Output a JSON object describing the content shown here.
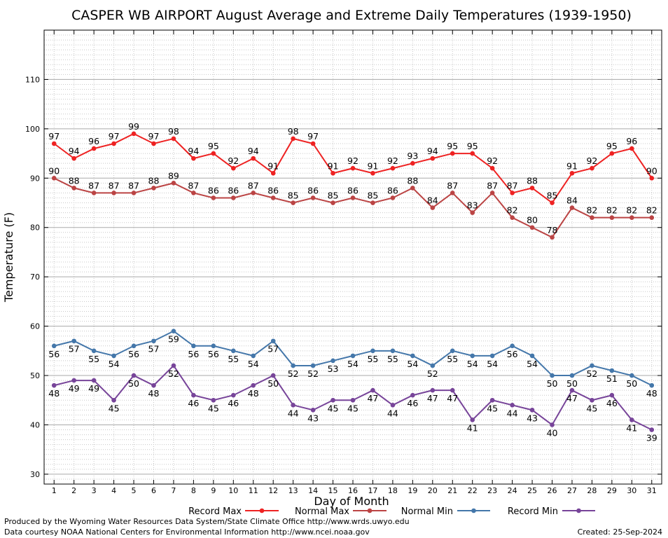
{
  "chart_data": {
    "type": "line",
    "title": "CASPER WB AIRPORT August Average and Extreme Daily Temperatures (1939-1950)",
    "xlabel": "Day of Month",
    "ylabel": "Temperature (F)",
    "ylim": [
      28,
      120
    ],
    "y_ticks": [
      30,
      40,
      50,
      60,
      70,
      80,
      90,
      100,
      110
    ],
    "x": [
      1,
      2,
      3,
      4,
      5,
      6,
      7,
      8,
      9,
      10,
      11,
      12,
      13,
      14,
      15,
      16,
      17,
      18,
      19,
      20,
      21,
      22,
      23,
      24,
      25,
      26,
      27,
      28,
      29,
      30,
      31
    ],
    "grid": true,
    "legend_position": "bottom",
    "series": [
      {
        "name": "Record Max",
        "color": "#ee2222",
        "values": [
          97,
          94,
          96,
          97,
          99,
          97,
          98,
          94,
          95,
          92,
          94,
          91,
          98,
          97,
          91,
          92,
          91,
          92,
          93,
          94,
          95,
          95,
          92,
          87,
          88,
          85,
          91,
          92,
          95,
          96,
          90
        ]
      },
      {
        "name": "Normal Max",
        "color": "#bb4444",
        "values": [
          90,
          88,
          87,
          87,
          87,
          88,
          89,
          87,
          86,
          86,
          87,
          86,
          85,
          86,
          85,
          86,
          85,
          86,
          88,
          84,
          87,
          83,
          87,
          82,
          80,
          78,
          84,
          82,
          82,
          82,
          82
        ]
      },
      {
        "name": "Normal Min",
        "color": "#4477aa",
        "values": [
          56,
          57,
          55,
          54,
          56,
          57,
          59,
          56,
          56,
          55,
          54,
          57,
          52,
          52,
          53,
          54,
          55,
          55,
          54,
          52,
          55,
          54,
          54,
          56,
          54,
          50,
          50,
          52,
          51,
          50,
          48
        ]
      },
      {
        "name": "Record Min",
        "color": "#774499",
        "values": [
          48,
          49,
          49,
          45,
          50,
          48,
          52,
          46,
          45,
          46,
          48,
          50,
          44,
          43,
          45,
          45,
          47,
          44,
          46,
          47,
          47,
          41,
          45,
          44,
          43,
          40,
          47,
          45,
          46,
          41,
          39
        ]
      }
    ]
  },
  "footer": {
    "produced_by": "Produced by the Wyoming Water Resources Data System/State Climate Office http://www.wrds.uwyo.edu",
    "courtesy": "Data courtesy NOAA National Centers for Environmental Information http://www.ncei.noaa.gov",
    "created": "Created:  25-Sep-2024"
  }
}
